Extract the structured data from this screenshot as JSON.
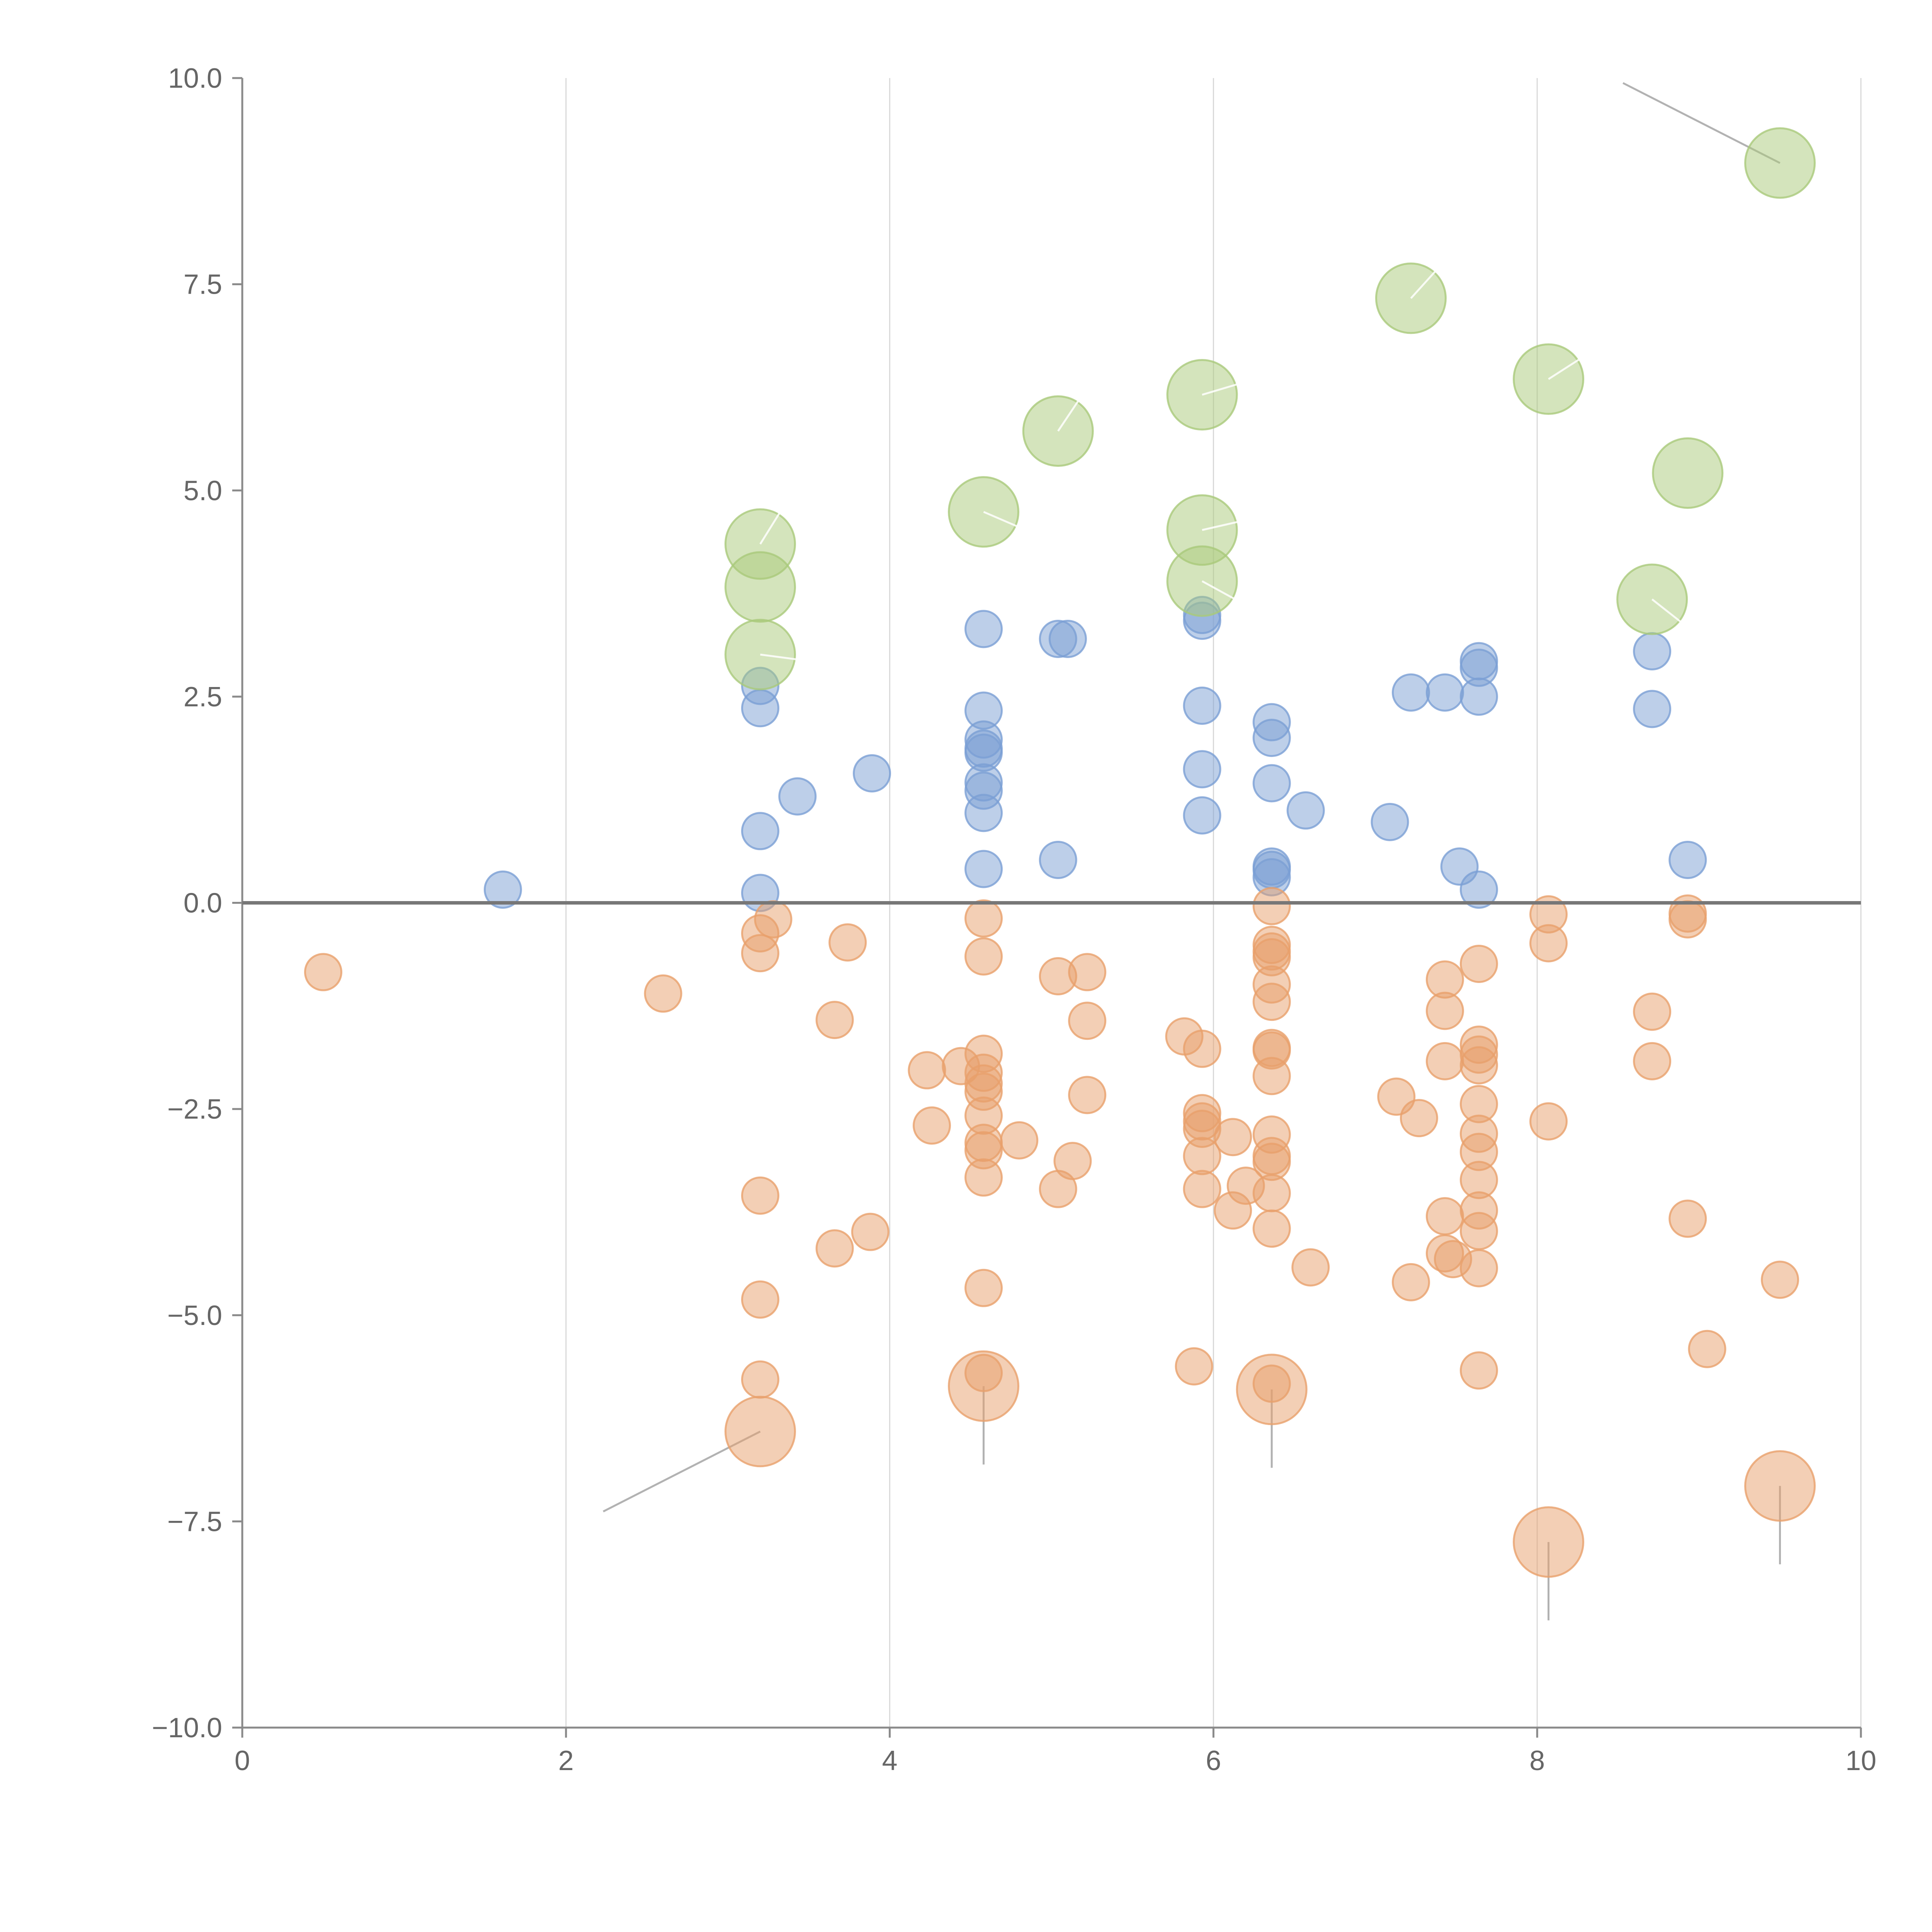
{
  "chart_data": {
    "type": "scatter",
    "title": "",
    "xlabel": "",
    "ylabel": "",
    "xlim": [
      0,
      10
    ],
    "ylim": [
      -10,
      10
    ],
    "xticks": [
      0,
      2,
      4,
      6,
      8,
      10
    ],
    "xtick_labels": [
      "0",
      "2",
      "4",
      "6",
      "8",
      "10"
    ],
    "yticks": [
      10,
      7.5,
      5,
      2.5,
      0,
      -2.5,
      -5,
      -7.5,
      -10
    ],
    "ytick_labels": [
      "10.0",
      "7.5",
      "5.0",
      "2.5",
      "0.0",
      "−2.5",
      "−5.0",
      "−7.5",
      "−10.0"
    ],
    "vertical_grid": true,
    "reference_line_y": 0,
    "colors": {
      "positive": "#7b9fd4",
      "negative": "#e8a06b",
      "highlight": "#a9c97a",
      "leader_dark": "#aaaaaa",
      "leader_light": "#ffffff"
    },
    "series": [
      {
        "name": "positive",
        "size": "small",
        "points": [
          [
            1.61,
            0.16
          ],
          [
            3.2,
            0.12
          ],
          [
            3.2,
            0.87
          ],
          [
            3.2,
            2.36
          ],
          [
            3.2,
            2.63
          ],
          [
            3.43,
            1.29
          ],
          [
            3.89,
            1.57
          ],
          [
            4.58,
            0.41
          ],
          [
            4.58,
            1.09
          ],
          [
            4.58,
            1.36
          ],
          [
            4.58,
            1.46
          ],
          [
            4.58,
            1.82
          ],
          [
            4.58,
            1.87
          ],
          [
            4.58,
            1.98
          ],
          [
            4.58,
            2.33
          ],
          [
            4.58,
            3.32
          ],
          [
            5.04,
            0.52
          ],
          [
            5.04,
            3.2
          ],
          [
            5.1,
            3.2
          ],
          [
            5.93,
            1.06
          ],
          [
            5.93,
            1.62
          ],
          [
            5.93,
            2.39
          ],
          [
            5.93,
            3.42
          ],
          [
            5.93,
            3.49
          ],
          [
            6.36,
            0.31
          ],
          [
            6.36,
            0.4
          ],
          [
            6.36,
            0.44
          ],
          [
            6.36,
            1.45
          ],
          [
            6.36,
            2.0
          ],
          [
            6.36,
            2.19
          ],
          [
            6.57,
            1.12
          ],
          [
            7.09,
            0.98
          ],
          [
            7.22,
            2.55
          ],
          [
            7.43,
            2.55
          ],
          [
            7.52,
            0.44
          ],
          [
            7.64,
            0.16
          ],
          [
            7.64,
            2.5
          ],
          [
            7.64,
            2.85
          ],
          [
            7.64,
            2.93
          ],
          [
            8.71,
            2.35
          ],
          [
            8.71,
            3.05
          ],
          [
            8.93,
            0.52
          ]
        ]
      },
      {
        "name": "negative",
        "size": "small",
        "points": [
          [
            0.5,
            -0.84
          ],
          [
            2.6,
            -1.1
          ],
          [
            3.2,
            -0.37
          ],
          [
            3.2,
            -0.61
          ],
          [
            3.2,
            -3.55
          ],
          [
            3.2,
            -4.81
          ],
          [
            3.2,
            -5.78
          ],
          [
            3.28,
            -0.2
          ],
          [
            3.66,
            -1.42
          ],
          [
            3.66,
            -4.19
          ],
          [
            3.74,
            -0.48
          ],
          [
            3.88,
            -3.99
          ],
          [
            4.23,
            -2.03
          ],
          [
            4.26,
            -2.7
          ],
          [
            4.44,
            -1.98
          ],
          [
            4.58,
            -0.19
          ],
          [
            4.58,
            -0.65
          ],
          [
            4.58,
            -1.83
          ],
          [
            4.58,
            -2.06
          ],
          [
            4.58,
            -2.19
          ],
          [
            4.58,
            -2.29
          ],
          [
            4.58,
            -2.58
          ],
          [
            4.58,
            -2.91
          ],
          [
            4.58,
            -3.0
          ],
          [
            4.58,
            -3.33
          ],
          [
            4.58,
            -4.67
          ],
          [
            4.58,
            -5.7
          ],
          [
            4.8,
            -2.88
          ],
          [
            5.04,
            -0.89
          ],
          [
            5.04,
            -3.47
          ],
          [
            5.13,
            -3.13
          ],
          [
            5.22,
            -0.84
          ],
          [
            5.22,
            -1.43
          ],
          [
            5.22,
            -2.33
          ],
          [
            5.82,
            -1.62
          ],
          [
            5.88,
            -5.62
          ],
          [
            5.93,
            -1.77
          ],
          [
            5.93,
            -2.55
          ],
          [
            5.93,
            -2.65
          ],
          [
            5.93,
            -2.74
          ],
          [
            5.93,
            -3.07
          ],
          [
            5.93,
            -3.47
          ],
          [
            6.12,
            -2.84
          ],
          [
            6.12,
            -3.73
          ],
          [
            6.2,
            -3.43
          ],
          [
            6.36,
            -0.04
          ],
          [
            6.36,
            -0.51
          ],
          [
            6.36,
            -0.59
          ],
          [
            6.36,
            -0.66
          ],
          [
            6.36,
            -0.99
          ],
          [
            6.36,
            -1.2
          ],
          [
            6.36,
            -1.76
          ],
          [
            6.36,
            -1.79
          ],
          [
            6.36,
            -2.1
          ],
          [
            6.36,
            -2.81
          ],
          [
            6.36,
            -3.07
          ],
          [
            6.36,
            -3.14
          ],
          [
            6.36,
            -3.52
          ],
          [
            6.36,
            -3.95
          ],
          [
            6.36,
            -5.83
          ],
          [
            6.6,
            -4.42
          ],
          [
            7.13,
            -2.35
          ],
          [
            7.22,
            -4.6
          ],
          [
            7.27,
            -2.61
          ],
          [
            7.43,
            -0.93
          ],
          [
            7.43,
            -1.31
          ],
          [
            7.43,
            -1.92
          ],
          [
            7.43,
            -3.8
          ],
          [
            7.43,
            -4.25
          ],
          [
            7.48,
            -4.32
          ],
          [
            7.64,
            -0.74
          ],
          [
            7.64,
            -1.72
          ],
          [
            7.64,
            -1.84
          ],
          [
            7.64,
            -1.97
          ],
          [
            7.64,
            -2.44
          ],
          [
            7.64,
            -2.8
          ],
          [
            7.64,
            -3.02
          ],
          [
            7.64,
            -3.36
          ],
          [
            7.64,
            -3.73
          ],
          [
            7.64,
            -3.98
          ],
          [
            7.64,
            -4.43
          ],
          [
            7.64,
            -5.67
          ],
          [
            8.07,
            -0.14
          ],
          [
            8.07,
            -0.49
          ],
          [
            8.07,
            -2.65
          ],
          [
            8.71,
            -1.32
          ],
          [
            8.71,
            -1.92
          ],
          [
            8.93,
            -0.13
          ],
          [
            8.93,
            -0.2
          ],
          [
            8.93,
            -3.83
          ],
          [
            9.05,
            -5.41
          ],
          [
            9.5,
            -4.57
          ]
        ]
      },
      {
        "name": "highlight-positive",
        "size": "large",
        "points": [
          [
            3.2,
            4.35
          ],
          [
            3.2,
            3.83
          ],
          [
            3.2,
            3.01
          ],
          [
            4.58,
            4.74
          ],
          [
            5.04,
            5.72
          ],
          [
            5.93,
            6.16
          ],
          [
            5.93,
            4.52
          ],
          [
            5.93,
            3.9
          ],
          [
            7.22,
            7.33
          ],
          [
            8.07,
            6.35
          ],
          [
            8.71,
            3.68
          ],
          [
            8.93,
            5.21
          ],
          [
            9.5,
            8.97
          ]
        ]
      },
      {
        "name": "highlight-negative",
        "size": "large",
        "points": [
          [
            3.2,
            -6.41
          ],
          [
            4.58,
            -5.86
          ],
          [
            6.36,
            -5.9
          ],
          [
            8.07,
            -7.75
          ],
          [
            9.5,
            -7.07
          ]
        ]
      }
    ],
    "leader_lines": [
      {
        "from": [
          9.5,
          8.97
        ],
        "to": [
          8.53,
          9.94
        ],
        "color": "dark"
      },
      {
        "from": [
          3.2,
          -6.41
        ],
        "to": [
          2.23,
          -7.38
        ],
        "color": "dark"
      },
      {
        "from": [
          4.58,
          -5.86
        ],
        "to": [
          4.58,
          -6.81
        ],
        "color": "dark"
      },
      {
        "from": [
          6.36,
          -5.9
        ],
        "to": [
          6.36,
          -6.85
        ],
        "color": "dark"
      },
      {
        "from": [
          8.07,
          -7.75
        ],
        "to": [
          8.07,
          -8.7
        ],
        "color": "dark"
      },
      {
        "from": [
          9.5,
          -7.07
        ],
        "to": [
          9.5,
          -8.02
        ],
        "color": "dark"
      },
      {
        "from": [
          3.2,
          4.35
        ],
        "to": [
          3.33,
          4.76
        ],
        "color": "light"
      },
      {
        "from": [
          3.2,
          3.01
        ],
        "to": [
          3.51,
          2.93
        ],
        "color": "light"
      },
      {
        "from": [
          4.58,
          4.74
        ],
        "to": [
          4.84,
          4.52
        ],
        "color": "light"
      },
      {
        "from": [
          5.04,
          5.72
        ],
        "to": [
          5.18,
          6.13
        ],
        "color": "light"
      },
      {
        "from": [
          5.93,
          6.16
        ],
        "to": [
          6.22,
          6.33
        ],
        "color": "light"
      },
      {
        "from": [
          5.93,
          4.52
        ],
        "to": [
          6.22,
          4.65
        ],
        "color": "light"
      },
      {
        "from": [
          5.93,
          3.9
        ],
        "to": [
          6.19,
          3.62
        ],
        "color": "light"
      },
      {
        "from": [
          7.22,
          7.33
        ],
        "to": [
          7.4,
          7.72
        ],
        "color": "light"
      },
      {
        "from": [
          8.07,
          6.35
        ],
        "to": [
          8.34,
          6.69
        ],
        "color": "light"
      },
      {
        "from": [
          8.71,
          3.68
        ],
        "to": [
          8.93,
          3.34
        ],
        "color": "light"
      }
    ]
  }
}
